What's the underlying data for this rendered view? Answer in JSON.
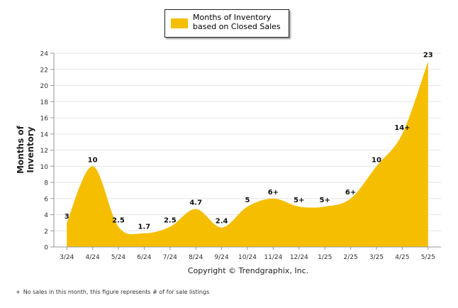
{
  "chart_data": {
    "type": "area",
    "title": "",
    "xlabel": "",
    "ylabel": "Months of Inventory",
    "categories": [
      "3/24",
      "4/24",
      "5/24",
      "6/24",
      "7/24",
      "8/24",
      "9/24",
      "10/24",
      "11/24",
      "12/24",
      "1/25",
      "2/25",
      "3/25",
      "4/25",
      "5/25"
    ],
    "series": [
      {
        "name": "Months of Inventory based on Closed Sales",
        "values": [
          3,
          10,
          2.5,
          1.7,
          2.5,
          4.7,
          2.4,
          5,
          6,
          5,
          5,
          6,
          10,
          14,
          23
        ],
        "labels": [
          "3",
          "10",
          "2.5",
          "1.7",
          "2.5",
          "4.7",
          "2.4",
          "5",
          "6+",
          "5+",
          "5+",
          "6+",
          "10",
          "14+",
          "23"
        ],
        "color": "#F5BE00"
      }
    ],
    "ylim": [
      0,
      24
    ],
    "yticks": [
      0,
      2,
      4,
      6,
      8,
      10,
      12,
      14,
      16,
      18,
      20,
      22,
      24
    ],
    "grid": true,
    "legend": "top-center"
  },
  "legend": {
    "label": "Months of Inventory based on Closed Sales",
    "color": "#F5BE00"
  },
  "copyright": "Copyright © Trendgraphix, Inc.",
  "footnote": {
    "symbol": "+",
    "text": "No sales in this month, this figure represents # of for sale listings"
  }
}
